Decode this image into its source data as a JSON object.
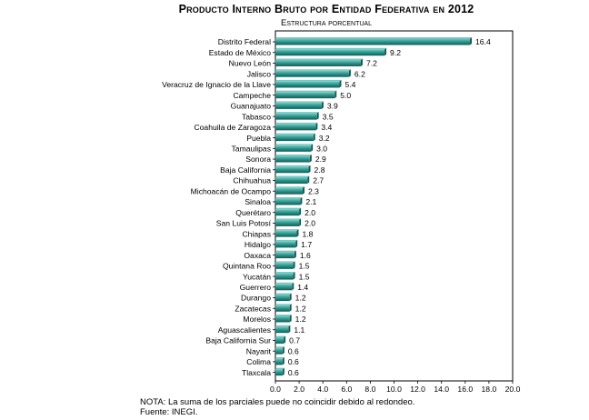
{
  "header": {
    "title": "Producto Interno Bruto por Entidad Federativa en 2012",
    "subtitle": "Estructura porcentual"
  },
  "footer": {
    "note": "NOTA: La suma de los parciales puede no coincidir debido al redondeo.",
    "source": "Fuente: INEGI."
  },
  "colors": {
    "bar": "#2f9a92",
    "bar_dark": "#0f5d57",
    "bar_light": "#79c9c2",
    "axis": "#000000"
  },
  "chart_data": {
    "type": "bar",
    "orientation": "horizontal",
    "title": "Producto Interno Bruto por Entidad Federativa en 2012",
    "subtitle": "Estructura porcentual",
    "xlabel": "",
    "ylabel": "",
    "xlim": [
      0,
      20
    ],
    "x_ticks": [
      "0.0",
      "2.0",
      "4.0",
      "6.0",
      "8.0",
      "10.0",
      "12.0",
      "14.0",
      "16.0",
      "18.0",
      "20.0"
    ],
    "grid": false,
    "legend": "none",
    "categories": [
      "Distrito Federal",
      "Estado de México",
      "Nuevo León",
      "Jalisco",
      "Veracruz de Ignacio de la Llave",
      "Campeche",
      "Guanajuato",
      "Tabasco",
      "Coahuila de Zaragoza",
      "Puebla",
      "Tamaulipas",
      "Sonora",
      "Baja California",
      "Chihuahua",
      "Michoacán de Ocampo",
      "Sinaloa",
      "Querétaro",
      "San Luis Potosí",
      "Chiapas",
      "Hidalgo",
      "Oaxaca",
      "Quintana Roo",
      "Yucatán",
      "Guerrero",
      "Durango",
      "Zacatecas",
      "Morelos",
      "Aguascalientes",
      "Baja California Sur",
      "Nayarit",
      "Colima",
      "Tlaxcala"
    ],
    "values": [
      16.4,
      9.2,
      7.2,
      6.2,
      5.4,
      5.0,
      3.9,
      3.5,
      3.4,
      3.2,
      3.0,
      2.9,
      2.8,
      2.7,
      2.3,
      2.1,
      2.0,
      2.0,
      1.8,
      1.7,
      1.6,
      1.5,
      1.5,
      1.4,
      1.2,
      1.2,
      1.2,
      1.1,
      0.7,
      0.6,
      0.6,
      0.6
    ],
    "value_labels": [
      "16.4",
      "9.2",
      "7.2",
      "6.2",
      "5.4",
      "5.0",
      "3.9",
      "3.5",
      "3.4",
      "3.2",
      "3.0",
      "2.9",
      "2.8",
      "2.7",
      "2.3",
      "2.1",
      "2.0",
      "2.0",
      "1.8",
      "1.7",
      "1.6",
      "1.5",
      "1.5",
      "1.4",
      "1.2",
      "1.2",
      "1.2",
      "1.1",
      "0.7",
      "0.6",
      "0.6",
      "0.6"
    ]
  }
}
